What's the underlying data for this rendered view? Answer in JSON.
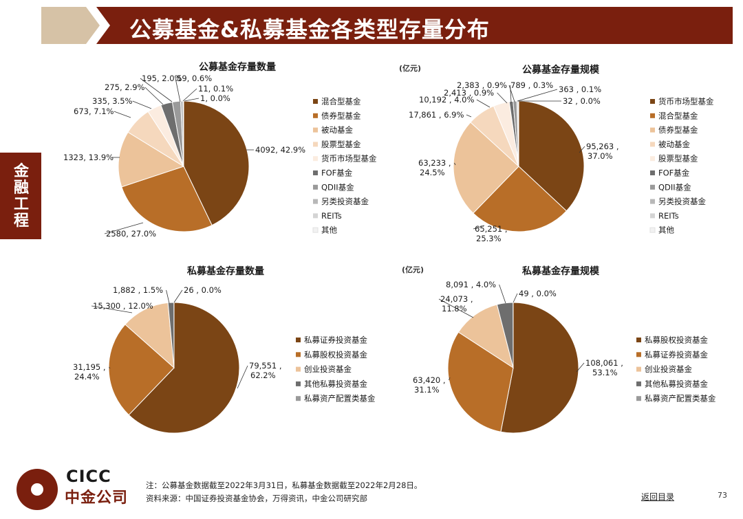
{
  "header": {
    "title": "公募基金&私募基金各类型存量分布"
  },
  "side_tab": {
    "label": "金融工程"
  },
  "footer": {
    "logo_en": "CICC",
    "logo_cn": "中金公司",
    "note_line1": "注：公募基金数据截至2022年3月31日，私募基金数据截至2022年2月28日。",
    "note_line2": "资料来源：中国证券投资基金协会，万得资讯，中金公司研究部",
    "toc_link": "返回目录",
    "page_number": "73"
  },
  "chart_data": [
    {
      "type": "pie",
      "title": "公募基金存量数量",
      "unit": "",
      "legend_position": "right",
      "slices": [
        {
          "name": "混合型基金",
          "value": 4092,
          "label": "4092, 42.9%",
          "color": "#7b4515"
        },
        {
          "name": "债券型基金",
          "value": 2580,
          "label": "2580, 27.0%",
          "color": "#b86e28"
        },
        {
          "name": "被动基金",
          "value": 1323,
          "label": "1323, 13.9%",
          "color": "#ecc39a"
        },
        {
          "name": "股票型基金",
          "value": 673,
          "label": "673, 7.1%",
          "color": "#f5d8bd"
        },
        {
          "name": "货币市场型基金",
          "value": 335,
          "label": "335, 3.5%",
          "color": "#fbece0"
        },
        {
          "name": "FOF基金",
          "value": 275,
          "label": "275, 2.9%",
          "color": "#6e6e6e"
        },
        {
          "name": "QDII基金",
          "value": 195,
          "label": "195, 2.0%",
          "color": "#9a9a9a"
        },
        {
          "name": "另类投资基金",
          "value": 59,
          "label": "59, 0.6%",
          "color": "#b8b8b8"
        },
        {
          "name": "REITs",
          "value": 11,
          "label": "11, 0.1%",
          "color": "#d4d4d4"
        },
        {
          "name": "其他",
          "value": 1,
          "label": "1, 0.0%",
          "color": "#f2f2f2"
        }
      ]
    },
    {
      "type": "pie",
      "title": "公募基金存量规模",
      "unit": "(亿元)",
      "legend_position": "right",
      "slices": [
        {
          "name": "货币市场型基金",
          "value": 95263,
          "label": "95,263 ,",
          "label2": "37.0%",
          "color": "#7b4515"
        },
        {
          "name": "混合型基金",
          "value": 65251,
          "label": "65,251 ,",
          "label2": "25.3%",
          "color": "#b86e28"
        },
        {
          "name": "债券型基金",
          "value": 63233,
          "label": "63,233 ,",
          "label2": "24.5%",
          "color": "#ecc39a"
        },
        {
          "name": "被动基金",
          "value": 17861,
          "label": "17,861 , 6.9%",
          "color": "#f5d8bd"
        },
        {
          "name": "股票型基金",
          "value": 10192,
          "label": "10,192 , 4.0%",
          "color": "#fbece0"
        },
        {
          "name": "FOF基金",
          "value": 2413,
          "label": "2,413 , 0.9%",
          "color": "#6e6e6e"
        },
        {
          "name": "QDII基金",
          "value": 2383,
          "label": "2,383 , 0.9%",
          "color": "#9a9a9a"
        },
        {
          "name": "另类投资基金",
          "value": 789,
          "label": "789 , 0.3%",
          "color": "#b8b8b8"
        },
        {
          "name": "REITs",
          "value": 363,
          "label": "363 , 0.1%",
          "color": "#d4d4d4"
        },
        {
          "name": "其他",
          "value": 32,
          "label": "32 , 0.0%",
          "color": "#f2f2f2"
        }
      ]
    },
    {
      "type": "pie",
      "title": "私募基金存量数量",
      "unit": "",
      "legend_position": "right",
      "slices": [
        {
          "name": "私募证券投资基金",
          "value": 79551,
          "label": "79,551 ,",
          "label2": "62.2%",
          "color": "#7b4515"
        },
        {
          "name": "私募股权投资基金",
          "value": 31195,
          "label": "31,195 ,",
          "label2": "24.4%",
          "color": "#b86e28"
        },
        {
          "name": "创业投资基金",
          "value": 15300,
          "label": "15,300 , 12.0%",
          "color": "#ecc39a"
        },
        {
          "name": "其他私募投资基金",
          "value": 1882,
          "label": "1,882 , 1.5%",
          "color": "#6e6e6e"
        },
        {
          "name": "私募资产配置类基金",
          "value": 26,
          "label": "26 , 0.0%",
          "color": "#9a9a9a"
        }
      ]
    },
    {
      "type": "pie",
      "title": "私募基金存量规模",
      "unit": "(亿元)",
      "legend_position": "right",
      "slices": [
        {
          "name": "私募股权投资基金",
          "value": 108061,
          "label": "108,061 ,",
          "label2": "53.1%",
          "color": "#7b4515"
        },
        {
          "name": "私募证券投资基金",
          "value": 63420,
          "label": "63,420 ,",
          "label2": "31.1%",
          "color": "#b86e28"
        },
        {
          "name": "创业投资基金",
          "value": 24073,
          "label": "24,073 ,",
          "label2": "11.8%",
          "color": "#ecc39a"
        },
        {
          "name": "其他私募投资基金",
          "value": 8091,
          "label": "8,091 , 4.0%",
          "color": "#6e6e6e"
        },
        {
          "name": "私募资产配置类基金",
          "value": 49,
          "label": "49 , 0.0%",
          "color": "#9a9a9a"
        }
      ]
    }
  ]
}
